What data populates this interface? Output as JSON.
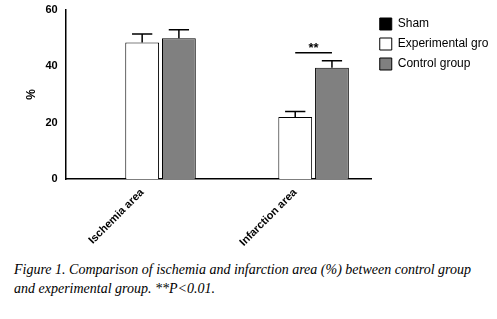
{
  "chart_data": {
    "type": "bar",
    "categories": [
      "Ischemia area",
      "Infarction area"
    ],
    "ylabel": "%",
    "ylim": [
      0,
      60
    ],
    "yticks": [
      0,
      20,
      40,
      60
    ],
    "grid": false,
    "legend": "top right",
    "caption": "Figure 1. Comparison of ischemia and infarction area (%) between control group and experimental group. **P<0.01.",
    "series": [
      {
        "name": "Sham",
        "color": "#000000",
        "values": [
          null,
          null
        ],
        "errors": [
          null,
          null
        ]
      },
      {
        "name": "Experimental group",
        "color": "#ffffff",
        "values": [
          48.5,
          22
        ],
        "errors": [
          3,
          2
        ]
      },
      {
        "name": "Control group",
        "color": "#808080",
        "values": [
          50,
          39.5
        ],
        "errors": [
          3,
          2.5
        ]
      }
    ],
    "annotations": [
      {
        "text": "**",
        "category": "Infarction area",
        "between": [
          "Experimental group",
          "Control group"
        ]
      }
    ]
  }
}
